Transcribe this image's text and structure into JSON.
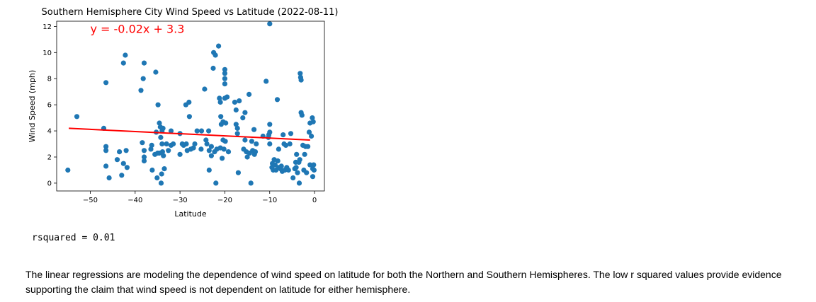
{
  "chart_data": {
    "type": "scatter",
    "title": "Southern Hemisphere City Wind Speed vs Latitude (2022-08-11)",
    "xlabel": "Latitude",
    "ylabel": "Wind Speed (mph)",
    "xlim": [
      -57.5,
      2.2
    ],
    "ylim": [
      -0.6,
      12.4
    ],
    "xticks": [
      -50,
      -40,
      -30,
      -20,
      -10,
      0
    ],
    "yticks": [
      0,
      2,
      4,
      6,
      8,
      10,
      12
    ],
    "grid": false,
    "point_color": "#1f77b4",
    "line_color": "#ff0000",
    "annotation": {
      "text": "y = -0.02x + 3.3",
      "x": -50,
      "y": 11.5,
      "color": "#ff0000"
    },
    "regression_line": {
      "x": [
        -54.8,
        -1.0
      ],
      "y": [
        4.2,
        3.3
      ]
    },
    "points": [
      [
        -55.0,
        1.0
      ],
      [
        -53.0,
        5.1
      ],
      [
        -47.0,
        4.2
      ],
      [
        -46.5,
        7.7
      ],
      [
        -46.5,
        2.8
      ],
      [
        -46.5,
        2.5
      ],
      [
        -46.5,
        1.3
      ],
      [
        -45.8,
        0.4
      ],
      [
        -44.0,
        1.8
      ],
      [
        -43.5,
        2.4
      ],
      [
        -43.0,
        0.6
      ],
      [
        -42.6,
        1.5
      ],
      [
        -42.6,
        9.2
      ],
      [
        -42.2,
        9.8
      ],
      [
        -42.0,
        2.5
      ],
      [
        -41.8,
        1.2
      ],
      [
        -38.7,
        7.1
      ],
      [
        -38.4,
        3.1
      ],
      [
        -38.2,
        8.0
      ],
      [
        -38.0,
        9.2
      ],
      [
        -38.0,
        2.5
      ],
      [
        -38.0,
        2.0
      ],
      [
        -38.0,
        1.7
      ],
      [
        -36.5,
        2.6
      ],
      [
        -36.3,
        2.9
      ],
      [
        -36.2,
        1.0
      ],
      [
        -35.6,
        2.2
      ],
      [
        -35.4,
        8.5
      ],
      [
        -35.3,
        3.9
      ],
      [
        -35.1,
        0.4
      ],
      [
        -35.0,
        2.3
      ],
      [
        -34.9,
        6.0
      ],
      [
        -34.6,
        2.3
      ],
      [
        -34.6,
        4.6
      ],
      [
        -34.4,
        4.3
      ],
      [
        -34.3,
        3.5
      ],
      [
        -34.2,
        0.0
      ],
      [
        -34.1,
        0.7
      ],
      [
        -34.0,
        4.0
      ],
      [
        -34.0,
        3.0
      ],
      [
        -33.9,
        2.4
      ],
      [
        -33.8,
        4.2
      ],
      [
        -33.7,
        2.1
      ],
      [
        -33.5,
        1.1
      ],
      [
        -33.0,
        3.0
      ],
      [
        -32.6,
        2.5
      ],
      [
        -32.0,
        2.9
      ],
      [
        -32.0,
        4.0
      ],
      [
        -31.5,
        3.0
      ],
      [
        -30.0,
        2.2
      ],
      [
        -30.0,
        3.8
      ],
      [
        -29.5,
        3.0
      ],
      [
        -29.2,
        2.9
      ],
      [
        -28.7,
        6.0
      ],
      [
        -28.6,
        3.0
      ],
      [
        -28.4,
        2.5
      ],
      [
        -28.0,
        6.2
      ],
      [
        -27.9,
        5.1
      ],
      [
        -27.6,
        2.6
      ],
      [
        -27.0,
        2.7
      ],
      [
        -26.7,
        3.0
      ],
      [
        -26.2,
        4.0
      ],
      [
        -25.3,
        2.6
      ],
      [
        -25.2,
        4.0
      ],
      [
        -24.5,
        7.2
      ],
      [
        -24.2,
        3.3
      ],
      [
        -24.0,
        3.0
      ],
      [
        -23.6,
        4.0
      ],
      [
        -23.5,
        2.5
      ],
      [
        -23.5,
        1.0
      ],
      [
        -23.0,
        2.8
      ],
      [
        -23.0,
        2.1
      ],
      [
        -22.6,
        8.8
      ],
      [
        -22.5,
        10.0
      ],
      [
        -22.3,
        2.4
      ],
      [
        -22.1,
        9.8
      ],
      [
        -22.0,
        0.0
      ],
      [
        -21.8,
        2.6
      ],
      [
        -21.4,
        10.5
      ],
      [
        -21.2,
        6.5
      ],
      [
        -21.0,
        6.2
      ],
      [
        -21.0,
        2.7
      ],
      [
        -20.9,
        5.1
      ],
      [
        -20.8,
        4.5
      ],
      [
        -20.6,
        1.9
      ],
      [
        -20.4,
        3.3
      ],
      [
        -20.4,
        4.7
      ],
      [
        -20.2,
        2.6
      ],
      [
        -20.0,
        8.7
      ],
      [
        -20.0,
        8.4
      ],
      [
        -20.0,
        8.0
      ],
      [
        -20.0,
        7.6
      ],
      [
        -20.0,
        6.5
      ],
      [
        -19.9,
        3.2
      ],
      [
        -19.8,
        4.6
      ],
      [
        -19.5,
        6.6
      ],
      [
        -19.2,
        2.4
      ],
      [
        -17.8,
        6.2
      ],
      [
        -17.5,
        5.6
      ],
      [
        -17.5,
        4.5
      ],
      [
        -17.2,
        4.2
      ],
      [
        -17.2,
        3.8
      ],
      [
        -17.0,
        0.8
      ],
      [
        -16.8,
        6.3
      ],
      [
        -16.0,
        5.0
      ],
      [
        -15.8,
        2.6
      ],
      [
        -15.5,
        5.4
      ],
      [
        -15.5,
        3.3
      ],
      [
        -15.2,
        2.4
      ],
      [
        -15.0,
        2.0
      ],
      [
        -14.6,
        6.8
      ],
      [
        -14.5,
        2.3
      ],
      [
        -14.2,
        0.0
      ],
      [
        -14.0,
        3.2
      ],
      [
        -13.8,
        2.5
      ],
      [
        -13.5,
        4.1
      ],
      [
        -13.4,
        2.2
      ],
      [
        -13.2,
        2.4
      ],
      [
        -13.0,
        3.0
      ],
      [
        -11.5,
        3.6
      ],
      [
        -10.8,
        7.8
      ],
      [
        -10.3,
        3.5
      ],
      [
        -10.2,
        3.7
      ],
      [
        -10.0,
        12.2
      ],
      [
        -10.0,
        3.0
      ],
      [
        -10.0,
        3.9
      ],
      [
        -10.0,
        4.5
      ],
      [
        -9.5,
        1.2
      ],
      [
        -9.4,
        1.5
      ],
      [
        -9.2,
        1.0
      ],
      [
        -9.0,
        1.8
      ],
      [
        -8.8,
        1.4
      ],
      [
        -8.6,
        1.0
      ],
      [
        -8.3,
        6.4
      ],
      [
        -8.2,
        1.7
      ],
      [
        -8.0,
        2.6
      ],
      [
        -8.0,
        1.2
      ],
      [
        -7.6,
        1.1
      ],
      [
        -7.4,
        1.3
      ],
      [
        -7.2,
        0.9
      ],
      [
        -7.0,
        3.7
      ],
      [
        -6.8,
        3.0
      ],
      [
        -6.6,
        1.0
      ],
      [
        -6.4,
        2.9
      ],
      [
        -6.2,
        1.2
      ],
      [
        -5.8,
        1.0
      ],
      [
        -5.5,
        3.0
      ],
      [
        -5.3,
        3.8
      ],
      [
        -4.8,
        0.4
      ],
      [
        -4.4,
        1.1
      ],
      [
        -4.2,
        1.6
      ],
      [
        -4.1,
        1.2
      ],
      [
        -4.0,
        2.2
      ],
      [
        -3.8,
        0.8
      ],
      [
        -3.5,
        1.6
      ],
      [
        -3.4,
        0.0
      ],
      [
        -3.3,
        1.8
      ],
      [
        -3.2,
        8.4
      ],
      [
        -3.1,
        8.1
      ],
      [
        -3.0,
        7.9
      ],
      [
        -3.0,
        5.4
      ],
      [
        -2.8,
        5.2
      ],
      [
        -2.6,
        2.9
      ],
      [
        -2.4,
        1.0
      ],
      [
        -2.2,
        2.2
      ],
      [
        -2.0,
        2.8
      ],
      [
        -1.8,
        0.8
      ],
      [
        -1.5,
        2.8
      ],
      [
        -1.2,
        3.9
      ],
      [
        -1.0,
        4.6
      ],
      [
        -1.0,
        1.4
      ],
      [
        -0.7,
        3.6
      ],
      [
        -0.5,
        5.0
      ],
      [
        -0.4,
        1.1
      ],
      [
        -0.4,
        0.5
      ],
      [
        -0.2,
        1.4
      ],
      [
        -0.1,
        1.0
      ],
      [
        -0.3,
        4.7
      ]
    ]
  },
  "output": {
    "rsquared_label": "rsquared",
    "rsquared_sep": "=",
    "rsquared_value": "0.01"
  },
  "notes": {
    "text": "The linear regressions are modeling the dependence of wind speed on latitude for both the Northern and Southern Hemispheres. The low r squared values provide evidence supporting the claim that wind speed is not dependent on latitude for either hemisphere."
  }
}
